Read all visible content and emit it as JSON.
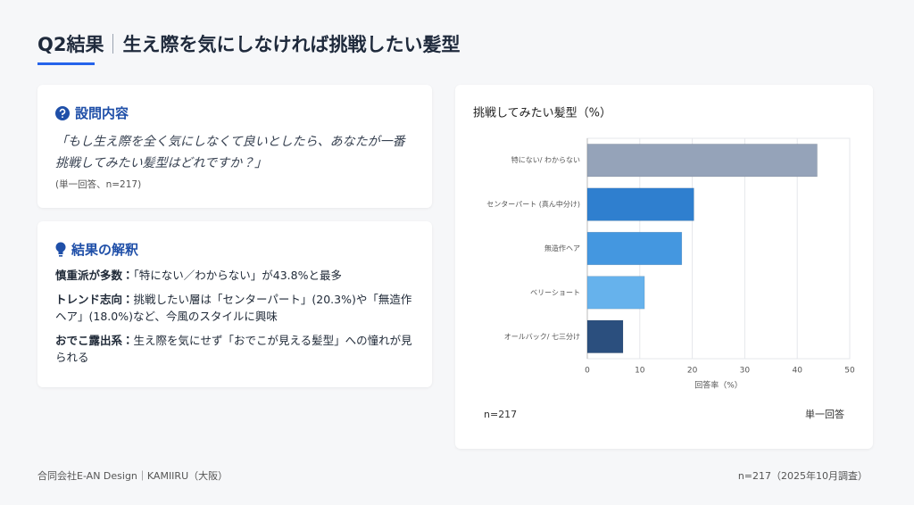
{
  "header": {
    "title_main": "Q2結果",
    "title_sub": "生え際を気にしなければ挑戦したい髪型"
  },
  "question": {
    "heading": "設問内容",
    "text": "「もし生え際を全く気にしなくて良いとしたら、あなたが一番挑戦してみたい髪型はどれですか？」",
    "note": "(単一回答、n=217)"
  },
  "interpretation": {
    "heading": "結果の解釈",
    "items": [
      {
        "label": "慎重派が多数：",
        "text": "「特にない／わからない」が43.8%と最多"
      },
      {
        "label": "トレンド志向：",
        "text": "挑戦したい層は「センターパート」(20.3%)や「無造作ヘア」(18.0%)など、今風のスタイルに興味"
      },
      {
        "label": "おでこ露出系：",
        "text": "生え際を気にせず「おでこが見える髪型」への憧れが見られる"
      }
    ]
  },
  "chart_data": {
    "type": "bar",
    "orientation": "horizontal",
    "title": "挑戦してみたい髪型（%）",
    "categories": [
      "特にない/ わからない",
      "センターパート (真ん中分け)",
      "無造作ヘア",
      "ベリーショート",
      "オールバック/ 七三分け"
    ],
    "values": [
      43.8,
      20.3,
      18.0,
      10.9,
      6.8
    ],
    "colors": [
      "#95a3b9",
      "#2f7fcf",
      "#4497e0",
      "#66b2ec",
      "#2b4f7e"
    ],
    "x_label": "回答率（%）",
    "xlim": [
      0,
      50
    ],
    "xticks": [
      0,
      10,
      20,
      30,
      40,
      50
    ],
    "grid": true,
    "note_left": "n=217",
    "note_right": "単一回答"
  },
  "footer": {
    "left": "合同会社E-AN Design｜KAMIIRU（大阪）",
    "right": "n=217（2025年10月調査）"
  }
}
